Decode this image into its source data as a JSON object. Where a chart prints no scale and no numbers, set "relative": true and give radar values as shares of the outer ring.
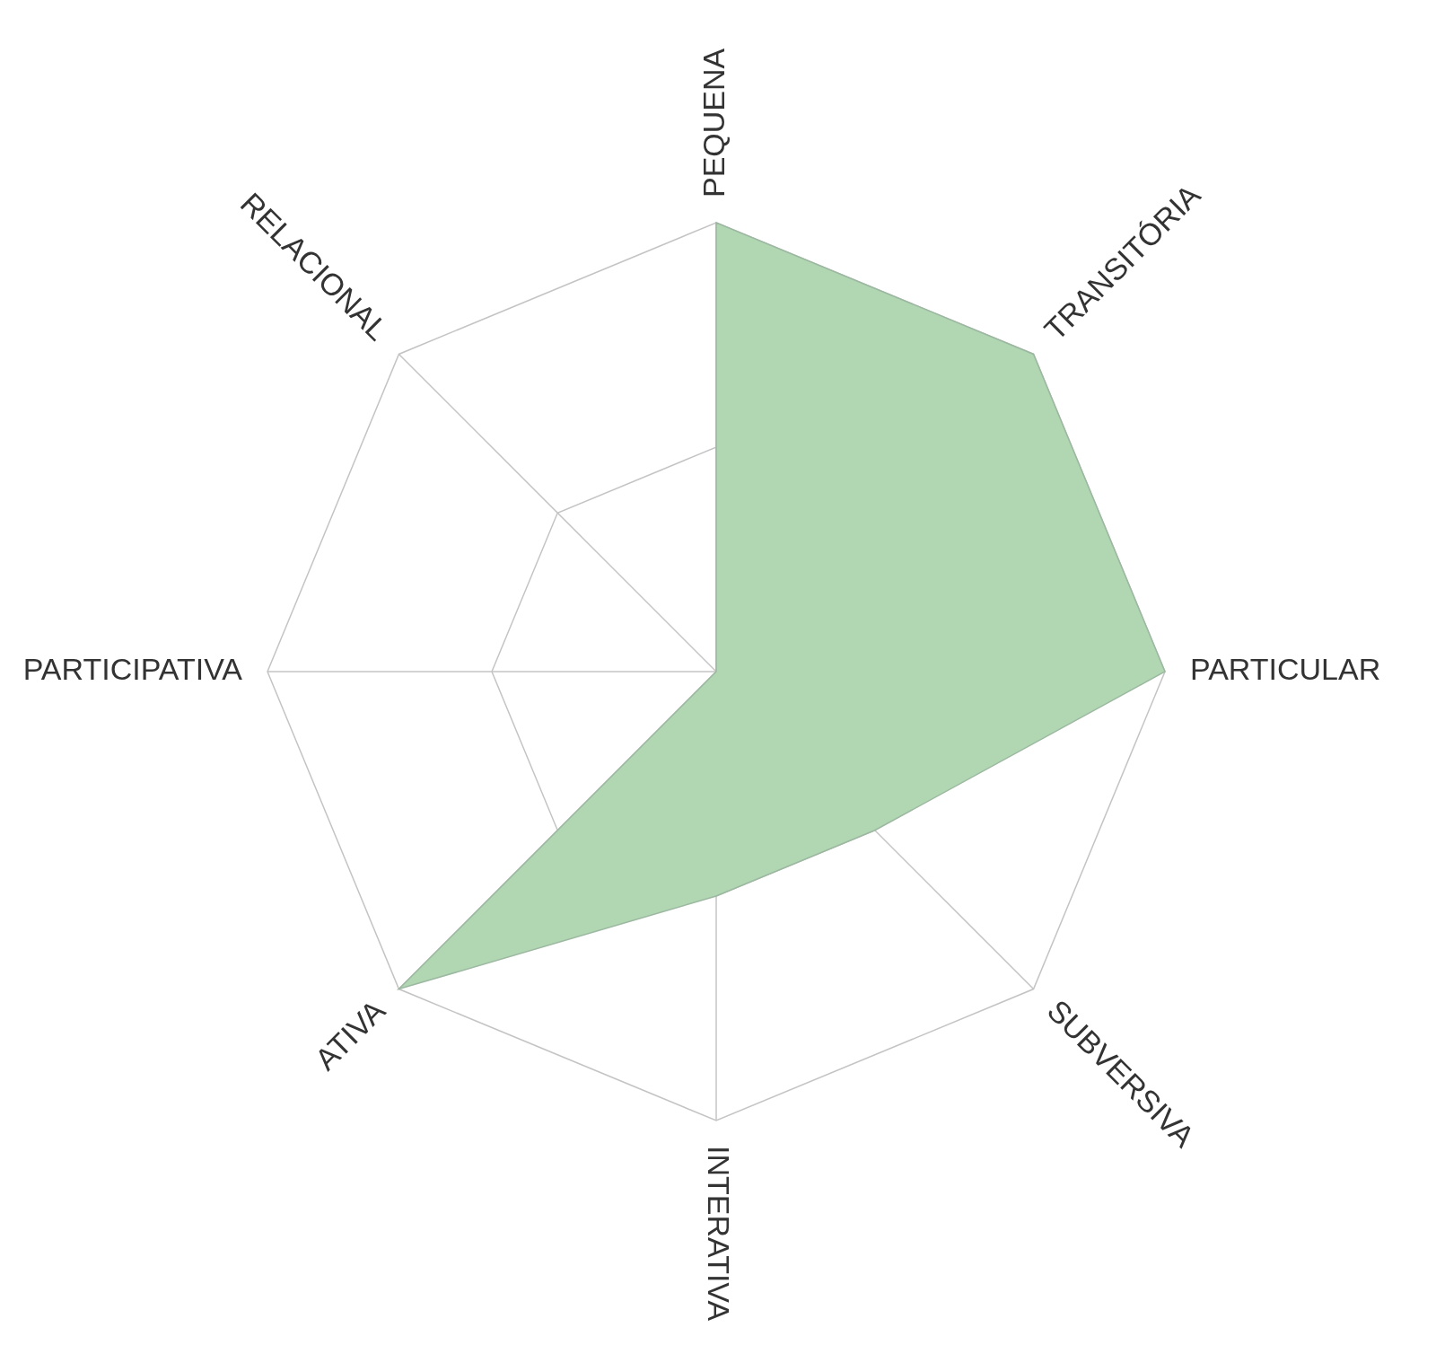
{
  "chart_data": {
    "type": "radar",
    "relative": true,
    "categories": [
      "PEQUENA",
      "TRANSITÓRIA",
      "PARTICULAR",
      "SUBVERSIVA",
      "INTERATIVA",
      "ATIVA",
      "PARTICIPATIVA",
      "RELACIONAL"
    ],
    "series": [
      {
        "color": "#b0d6b2",
        "values": [
          1,
          1,
          1,
          0.5,
          0.5,
          1,
          0,
          0
        ]
      }
    ],
    "grid": true,
    "legend": false,
    "marker": "none"
  }
}
